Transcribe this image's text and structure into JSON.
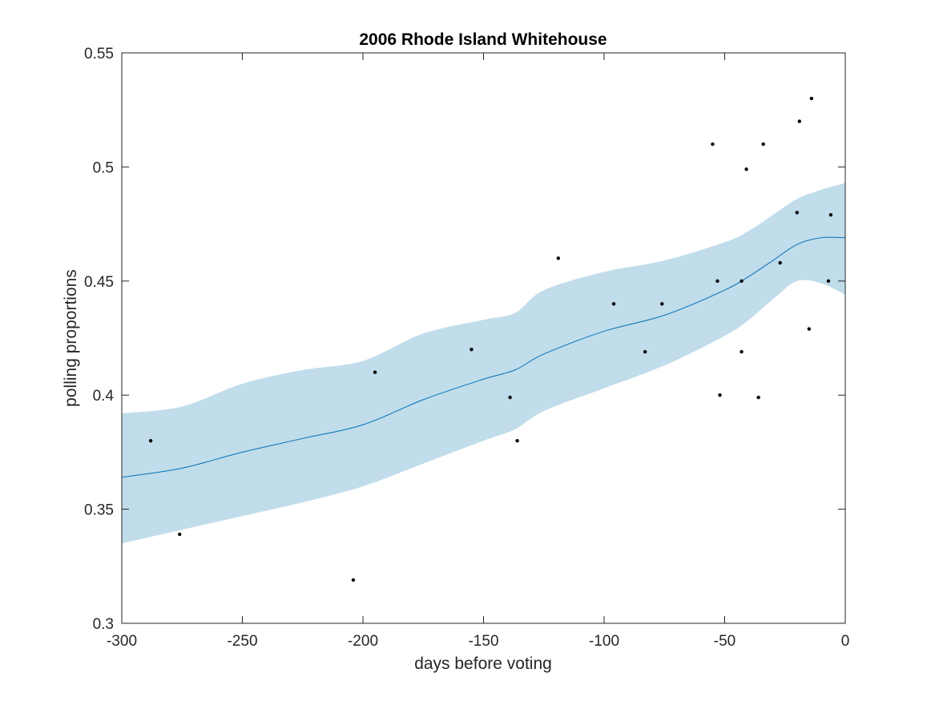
{
  "chart_data": {
    "type": "line",
    "title": "2006 Rhode Island Whitehouse",
    "xlabel": "days before voting",
    "ylabel": "polling proportions",
    "xlim": [
      -300,
      0
    ],
    "ylim": [
      0.3,
      0.55
    ],
    "xticks": [
      -300,
      -250,
      -200,
      -150,
      -100,
      -50,
      0
    ],
    "xtick_labels": [
      "-300",
      "-250",
      "-200",
      "-150",
      "-100",
      "-50",
      "0"
    ],
    "yticks": [
      0.3,
      0.35,
      0.4,
      0.45,
      0.5,
      0.55
    ],
    "ytick_labels": [
      "0.3",
      "0.35",
      "0.4",
      "0.45",
      "0.5",
      "0.55"
    ],
    "grid": false,
    "colors": {
      "mean_line": "#0072BD",
      "band_fill": "#c1dcea",
      "points": "#000000",
      "axes": "#262626"
    },
    "series": [
      {
        "kind": "band",
        "x": [
          -300,
          -275,
          -250,
          -225,
          -200,
          -175,
          -150,
          -137,
          -125,
          -100,
          -75,
          -50,
          -40,
          -30,
          -20,
          -10,
          0
        ],
        "lower": [
          0.335,
          0.341,
          0.347,
          0.353,
          0.36,
          0.37,
          0.38,
          0.385,
          0.393,
          0.403,
          0.413,
          0.426,
          0.433,
          0.442,
          0.45,
          0.449,
          0.444
        ],
        "upper": [
          0.392,
          0.395,
          0.405,
          0.411,
          0.415,
          0.427,
          0.433,
          0.436,
          0.446,
          0.454,
          0.459,
          0.467,
          0.472,
          0.479,
          0.486,
          0.49,
          0.493
        ]
      },
      {
        "kind": "line",
        "x": [
          -300,
          -275,
          -250,
          -225,
          -200,
          -175,
          -150,
          -137,
          -125,
          -100,
          -75,
          -50,
          -40,
          -30,
          -20,
          -10,
          0
        ],
        "y": [
          0.364,
          0.368,
          0.375,
          0.381,
          0.387,
          0.398,
          0.407,
          0.411,
          0.418,
          0.428,
          0.435,
          0.446,
          0.452,
          0.459,
          0.466,
          0.469,
          0.469
        ]
      },
      {
        "kind": "scatter",
        "points": [
          [
            -288,
            0.38
          ],
          [
            -276,
            0.339
          ],
          [
            -204,
            0.319
          ],
          [
            -195,
            0.41
          ],
          [
            -155,
            0.42
          ],
          [
            -139,
            0.399
          ],
          [
            -136,
            0.38
          ],
          [
            -119,
            0.46
          ],
          [
            -96,
            0.44
          ],
          [
            -83,
            0.419
          ],
          [
            -76,
            0.44
          ],
          [
            -55,
            0.51
          ],
          [
            -53,
            0.45
          ],
          [
            -52,
            0.4
          ],
          [
            -43,
            0.45
          ],
          [
            -43,
            0.419
          ],
          [
            -41,
            0.499
          ],
          [
            -36,
            0.399
          ],
          [
            -34,
            0.51
          ],
          [
            -27,
            0.458
          ],
          [
            -20,
            0.48
          ],
          [
            -19,
            0.52
          ],
          [
            -15,
            0.429
          ],
          [
            -14,
            0.53
          ],
          [
            -7,
            0.45
          ],
          [
            -6,
            0.479
          ]
        ]
      }
    ]
  }
}
